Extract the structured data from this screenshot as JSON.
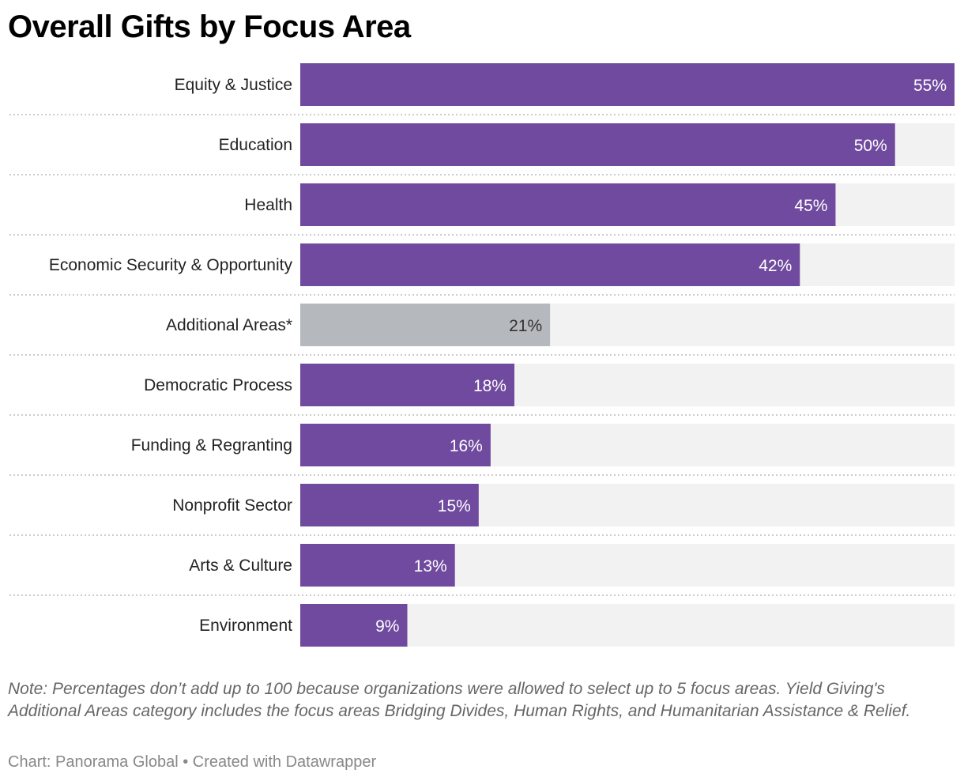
{
  "chart_data": {
    "type": "bar",
    "orientation": "horizontal",
    "title": "Overall Gifts by Focus Area",
    "categories": [
      "Equity & Justice",
      "Education",
      "Health",
      "Economic Security & Opportunity",
      "Additional Areas*",
      "Democratic Process",
      "Funding & Regranting",
      "Nonprofit Sector",
      "Arts & Culture",
      "Environment"
    ],
    "values": [
      55,
      50,
      45,
      42,
      21,
      18,
      16,
      15,
      13,
      9
    ],
    "value_labels": [
      "55%",
      "50%",
      "45%",
      "42%",
      "21%",
      "18%",
      "16%",
      "15%",
      "13%",
      "9%"
    ],
    "highlight_category": "Additional Areas*",
    "xlim": [
      0,
      55
    ],
    "grid": false,
    "colors": {
      "bar": "#6f4a9e",
      "highlight": "#b5b8bd",
      "track": "#f2f2f2",
      "label_on_bar": "#ffffff",
      "label_on_highlight": "#333333",
      "separator": "#cccccc"
    }
  },
  "note": "Note: Percentages don’t add up to 100 because organizations were allowed to select up to 5 focus areas. Yield Giving's Additional Areas category includes the focus areas Bridging Divides, Human Rights, and Humanitarian Assistance & Relief.",
  "credit": "Chart: Panorama Global • Created with Datawrapper"
}
